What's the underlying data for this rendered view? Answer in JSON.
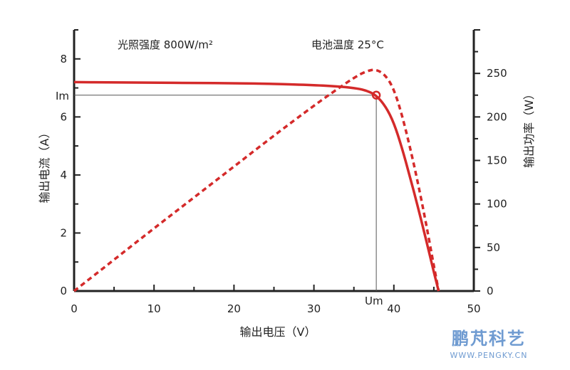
{
  "chart_data": {
    "type": "line",
    "xlabel": "输出电压（V）",
    "ylabel_left": "输出电流（A）",
    "ylabel_right": "输出功率（W）",
    "xlim": [
      0,
      50
    ],
    "ylim_left": [
      0,
      9
    ],
    "ylim_right": [
      0,
      300
    ],
    "x_ticks": [
      0,
      10,
      20,
      30,
      40,
      50
    ],
    "y_left_ticks": [
      0,
      2,
      4,
      6,
      8
    ],
    "y_right_ticks": [
      0,
      50,
      100,
      150,
      200,
      250
    ],
    "x_tick_labels": [
      "0",
      "10",
      "20",
      "30",
      "40",
      "50"
    ],
    "y_left_tick_labels": [
      "0",
      "2",
      "4",
      "6",
      "8"
    ],
    "y_right_tick_labels": [
      "0",
      "50",
      "100",
      "150",
      "200",
      "250"
    ],
    "grid": false,
    "annotations": {
      "irradiance": "光照强度  800W/m²",
      "cell_temp": "电池温度  25°C",
      "im_label": "Im",
      "um_label": "Um"
    },
    "mpp": {
      "x": 37.8,
      "current": 6.75,
      "power": 255
    },
    "series": [
      {
        "axis": "left",
        "style": "solid",
        "color": "#d42a2a",
        "x": [
          0,
          5,
          10,
          15,
          20,
          25,
          30,
          33,
          35,
          36.5,
          37.8,
          39,
          40,
          41,
          42,
          43,
          44,
          45,
          45.6
        ],
        "y": [
          7.2,
          7.19,
          7.18,
          7.17,
          7.16,
          7.14,
          7.1,
          7.05,
          7.0,
          6.92,
          6.75,
          6.35,
          5.8,
          4.95,
          3.95,
          2.9,
          1.8,
          0.65,
          0
        ]
      },
      {
        "axis": "right",
        "style": "dashed",
        "color": "#d42a2a",
        "x": [
          0,
          5,
          10,
          15,
          20,
          25,
          30,
          33,
          35,
          36.5,
          37.8,
          39,
          40,
          41,
          42,
          43,
          44,
          45,
          45.6
        ],
        "y": [
          0,
          36,
          72,
          107.5,
          143,
          178.5,
          213,
          232.5,
          245,
          252.5,
          255,
          247.5,
          232,
          203,
          166,
          124.5,
          79,
          29,
          0
        ]
      }
    ]
  },
  "watermark": {
    "title": "鹏芃科艺",
    "url": "WWW.PENGKY.CN"
  }
}
